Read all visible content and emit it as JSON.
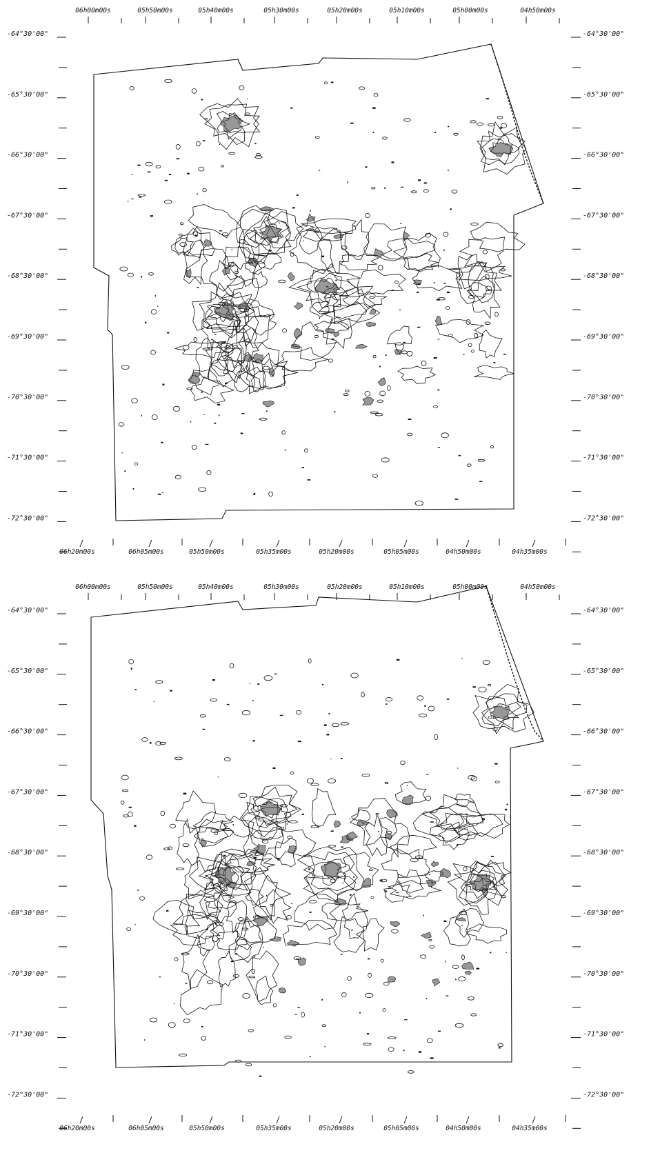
{
  "chart_data": [
    {
      "type": "contour",
      "panel": "top",
      "ra_top_ticks": [
        "06h00m00s",
        "05h50m00s",
        "05h40m00s",
        "05h30m00s",
        "05h20m00s",
        "05h10m00s",
        "05h00m00s",
        "04h50m00s"
      ],
      "ra_bottom_ticks": [
        "06h20m00s",
        "06h05m00s",
        "05h50m00s",
        "05h35m00s",
        "05h20m00s",
        "05h05m00s",
        "04h50m00s",
        "04h35m00s"
      ],
      "dec_ticks": [
        "-64°30'00\"",
        "-65°30'00\"",
        "-66°30'00\"",
        "-67°30'00\"",
        "-68°30'00\"",
        "-69°30'00\"",
        "-70°30'00\"",
        "-71°30'00\"",
        "-72°30'00\""
      ],
      "dec_range": [
        -72.5,
        -64.5
      ],
      "emission_peaks": [
        {
          "ra": "05h23m",
          "dec": -68.7
        },
        {
          "ra": "05h39m",
          "dec": -69.1
        },
        {
          "ra": "05h32m",
          "dec": -67.8
        },
        {
          "ra": "04h55m",
          "dec": -66.4
        },
        {
          "ra": "05h38m",
          "dec": -66.0
        }
      ]
    },
    {
      "type": "contour",
      "panel": "bottom",
      "ra_top_ticks": [
        "06h00m00s",
        "05h50m00s",
        "05h40m00s",
        "05h30m00s",
        "05h20m00s",
        "05h10m00s",
        "05h00m00s",
        "04h50m00s"
      ],
      "ra_bottom_ticks": [
        "06h20m00s",
        "06h05m00s",
        "05h50m00s",
        "05h35m00s",
        "05h20m00s",
        "05h05m00s",
        "04h50m00s",
        "04h35m00s"
      ],
      "dec_ticks": [
        "-64°30'00\"",
        "-65°30'00\"",
        "-66°30'00\"",
        "-67°30'00\"",
        "-68°30'00\"",
        "-69°30'00\"",
        "-70°30'00\"",
        "-71°30'00\"",
        "-72°30'00\""
      ],
      "dec_range": [
        -72.5,
        -64.5
      ],
      "emission_peaks": [
        {
          "ra": "05h39m",
          "dec": -68.9
        },
        {
          "ra": "05h22m",
          "dec": -68.8
        },
        {
          "ra": "04h55m",
          "dec": -66.2
        },
        {
          "ra": "05h32m",
          "dec": -67.8
        },
        {
          "ra": "04h58m",
          "dec": -69.0
        }
      ]
    }
  ]
}
